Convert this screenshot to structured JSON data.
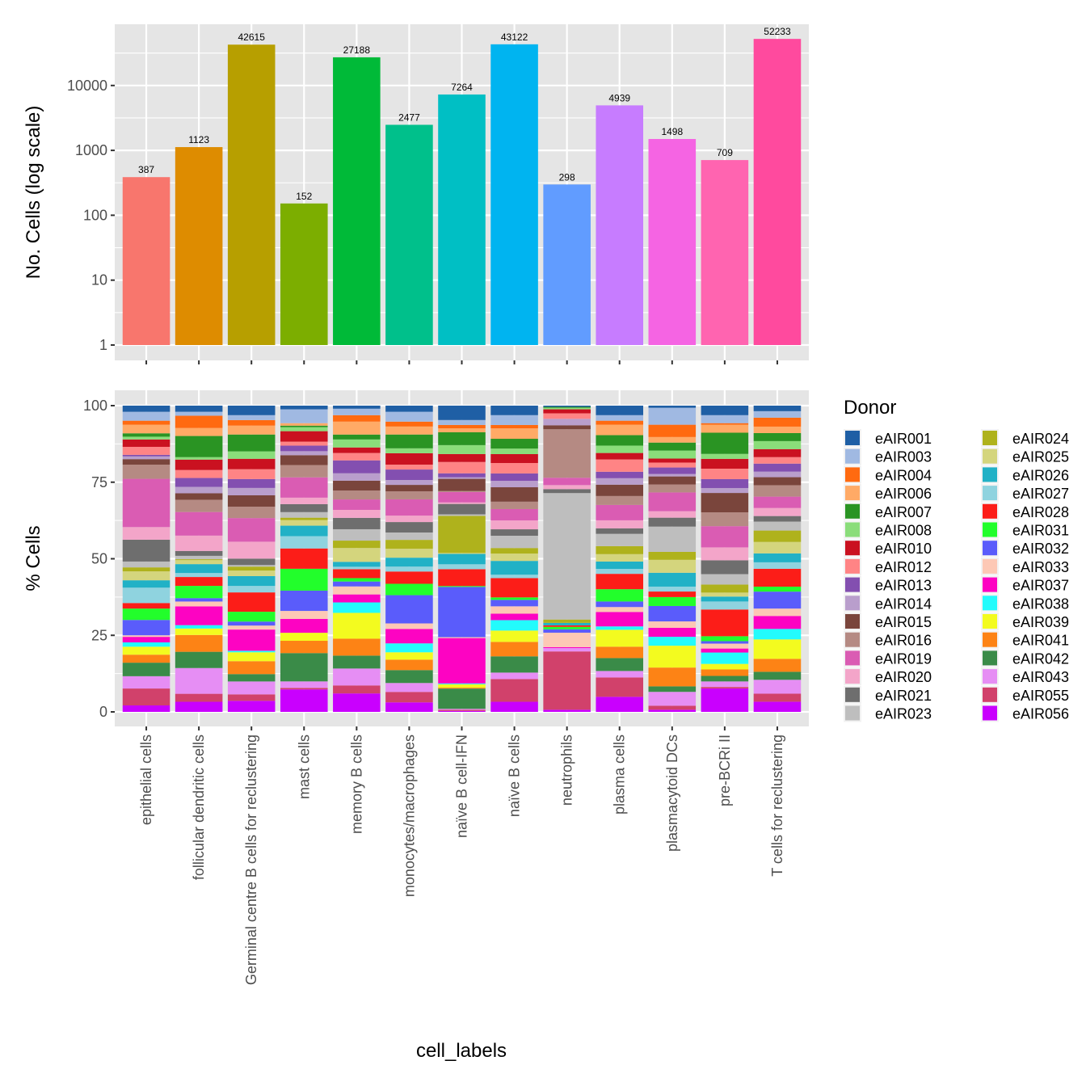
{
  "chart_data": [
    {
      "type": "bar",
      "panel": "top",
      "title": "",
      "xlabel": "",
      "ylabel": "No. Cells (log scale)",
      "yscale": "log10",
      "ylim": [
        1,
        100000
      ],
      "yticks": [
        1,
        10,
        100,
        1000,
        10000
      ],
      "ytick_labels": [
        "1",
        "10",
        "100",
        "1000",
        "10000"
      ],
      "grid": true,
      "categories": [
        "epithelial cells",
        "follicular dendritic cells",
        "Germinal centre B cells for reclustering",
        "mast cells",
        "memory B cells",
        "monocytes/macrophages",
        "naïve B cell-IFN",
        "naïve B cells",
        "neutrophils",
        "plasma cells",
        "plasmacytoid DCs",
        "pre-BCRi II",
        "T cells for reclustering"
      ],
      "values": [
        387,
        1123,
        42615,
        152,
        27188,
        2477,
        7264,
        43122,
        298,
        4939,
        1498,
        709,
        52233
      ],
      "data_labels": [
        "387",
        "1123",
        "42615",
        "152",
        "27188",
        "2477",
        "7264",
        "43122",
        "298",
        "4939",
        "1498",
        "709",
        "52233"
      ],
      "colors": [
        "#F8766D",
        "#DE8C00",
        "#B79F00",
        "#7CAE00",
        "#00BA38",
        "#00C08B",
        "#00BFC4",
        "#00B4F0",
        "#619CFF",
        "#C77CFF",
        "#F564E3",
        "#FF64B0",
        "#FF4A9E"
      ]
    },
    {
      "type": "bar",
      "stacked": true,
      "panel": "bottom",
      "title": "",
      "xlabel": "cell_labels",
      "ylabel": "% Cells",
      "ylim": [
        0,
        100
      ],
      "yticks": [
        0,
        25,
        50,
        75,
        100
      ],
      "ytick_labels": [
        "0",
        "25",
        "50",
        "75",
        "100"
      ],
      "grid": true,
      "legend_title": "Donor",
      "legend_position": "right",
      "categories": [
        "epithelial cells",
        "follicular dendritic cells",
        "Germinal centre B cells for reclustering",
        "mast cells",
        "memory B cells",
        "monocytes/macrophages",
        "naïve B cell-IFN",
        "naïve B cells",
        "neutrophils",
        "plasma cells",
        "plasmacytoid DCs",
        "pre-BCRi II",
        "T cells for reclustering"
      ],
      "series": [
        {
          "name": "eAIR001",
          "color": "#1F5FA5",
          "values": [
            2.0,
            2.0,
            3.1,
            1.2,
            1.0,
            2.0,
            4.7,
            3.1,
            0.4,
            3.1,
            0.7,
            3.1,
            1.8
          ]
        },
        {
          "name": "eAIR003",
          "color": "#A0B9E2",
          "values": [
            2.9,
            1.3,
            1.6,
            4.5,
            2.1,
            3.2,
            1.6,
            3.2,
            0.0,
            1.8,
            5.5,
            2.6,
            2.1
          ]
        },
        {
          "name": "eAIR004",
          "color": "#FF6A10",
          "values": [
            1.3,
            4.0,
            1.8,
            0.0,
            2.1,
            1.6,
            1.1,
            1.1,
            0.0,
            1.3,
            4.0,
            0.5,
            2.9
          ]
        },
        {
          "name": "eAIR006",
          "color": "#FFAA66",
          "values": [
            2.8,
            2.6,
            2.9,
            0.8,
            4.2,
            2.6,
            1.3,
            3.4,
            0.0,
            3.4,
            1.8,
            2.6,
            2.1
          ]
        },
        {
          "name": "eAIR007",
          "color": "#2A9423",
          "values": [
            1.1,
            6.9,
            5.5,
            0.5,
            1.6,
            4.5,
            4.2,
            3.2,
            0.3,
            3.4,
            2.6,
            6.9,
            2.6
          ]
        },
        {
          "name": "eAIR008",
          "color": "#8ADD7A",
          "values": [
            0.9,
            0.8,
            2.4,
            1.3,
            2.6,
            1.6,
            2.9,
            1.8,
            0.5,
            2.4,
            2.6,
            1.6,
            2.6
          ]
        },
        {
          "name": "eAIR010",
          "color": "#CA1120",
          "values": [
            2.4,
            3.4,
            3.4,
            3.4,
            1.8,
            3.7,
            2.6,
            2.9,
            1.3,
            2.1,
            1.3,
            3.2,
            2.6
          ]
        },
        {
          "name": "eAIR012",
          "color": "#FF8485",
          "values": [
            2.6,
            2.6,
            3.2,
            1.3,
            2.4,
            1.6,
            3.7,
            3.4,
            1.8,
            4.0,
            1.6,
            3.4,
            2.1
          ]
        },
        {
          "name": "eAIR013",
          "color": "#834FB0",
          "values": [
            0.5,
            2.9,
            2.9,
            1.8,
            4.2,
            3.4,
            1.3,
            2.4,
            0.0,
            2.1,
            2.1,
            2.9,
            2.6
          ]
        },
        {
          "name": "eAIR014",
          "color": "#B99ECC",
          "values": [
            0.9,
            2.1,
            2.4,
            1.3,
            2.4,
            1.6,
            0.5,
            2.1,
            2.1,
            2.1,
            0.8,
            1.6,
            1.8
          ]
        },
        {
          "name": "eAIR015",
          "color": "#7A453C",
          "values": [
            1.8,
            2.1,
            3.7,
            3.2,
            3.2,
            2.1,
            4.0,
            4.7,
            1.3,
            3.7,
            2.6,
            6.3,
            2.6
          ]
        },
        {
          "name": "eAIR016",
          "color": "#B58A83",
          "values": [
            4.6,
            4.0,
            3.7,
            4.0,
            2.9,
            2.6,
            0.3,
            2.4,
            15.8,
            2.9,
            2.6,
            4.5,
            3.7
          ]
        },
        {
          "name": "eAIR019",
          "color": "#DA5CB3",
          "values": [
            15.7,
            7.7,
            7.7,
            6.6,
            3.4,
            5.3,
            3.4,
            3.7,
            2.4,
            5.0,
            6.1,
            6.9,
            3.7
          ]
        },
        {
          "name": "eAIR020",
          "color": "#F3A5C9",
          "values": [
            4.1,
            5.0,
            5.5,
            2.1,
            2.6,
            2.1,
            0.5,
            2.9,
            1.3,
            2.6,
            2.1,
            4.2,
            2.6
          ]
        },
        {
          "name": "eAIR021",
          "color": "#6E6E6E",
          "values": [
            7.1,
            1.6,
            2.1,
            2.6,
            3.7,
            3.4,
            3.4,
            2.1,
            1.3,
            1.8,
            2.9,
            4.5,
            1.8
          ]
        },
        {
          "name": "eAIR023",
          "color": "#BEBEBE",
          "values": [
            1.9,
            1.1,
            0.5,
            1.8,
            3.7,
            2.4,
            0.5,
            4.0,
            41.2,
            4.0,
            8.2,
            3.4,
            2.9
          ]
        },
        {
          "name": "eAIR024",
          "color": "#AFB21C",
          "values": [
            1.3,
            0.3,
            1.3,
            0.8,
            2.4,
            2.9,
            12.1,
            1.8,
            1.1,
            2.6,
            2.6,
            2.6,
            3.7
          ]
        },
        {
          "name": "eAIR025",
          "color": "#D4D57D",
          "values": [
            2.9,
            1.3,
            1.8,
            1.8,
            4.5,
            2.9,
            0.3,
            2.4,
            0.0,
            2.4,
            4.2,
            1.3,
            3.7
          ]
        },
        {
          "name": "eAIR026",
          "color": "#21B1C6",
          "values": [
            2.4,
            2.9,
            3.2,
            3.4,
            1.6,
            2.9,
            3.4,
            4.5,
            0.8,
            2.4,
            4.5,
            1.6,
            2.9
          ]
        },
        {
          "name": "eAIR027",
          "color": "#8FD3DF",
          "values": [
            5.0,
            1.3,
            2.1,
            4.0,
            0.8,
            1.6,
            1.6,
            1.1,
            0.0,
            1.6,
            1.6,
            2.6,
            2.1
          ]
        },
        {
          "name": "eAIR028",
          "color": "#FC1D18",
          "values": [
            1.8,
            2.9,
            6.3,
            6.6,
            2.9,
            4.0,
            5.5,
            6.3,
            0.5,
            5.0,
            1.8,
            8.7,
            5.8
          ]
        },
        {
          "name": "eAIR031",
          "color": "#22FE2B",
          "values": [
            3.7,
            4.0,
            3.2,
            7.1,
            1.1,
            3.7,
            0.3,
            0.8,
            0.8,
            4.0,
            2.9,
            1.6,
            1.6
          ]
        },
        {
          "name": "eAIR032",
          "color": "#5A5CFB",
          "values": [
            5.0,
            1.1,
            1.3,
            6.6,
            1.6,
            9.2,
            16.4,
            2.1,
            1.1,
            1.8,
            5.0,
            0.8,
            5.5
          ]
        },
        {
          "name": "eAIR033",
          "color": "#FDC8B5",
          "values": [
            0.5,
            1.6,
            1.3,
            2.6,
            2.6,
            1.8,
            0.3,
            2.4,
            4.7,
            1.6,
            2.1,
            1.6,
            2.4
          ]
        },
        {
          "name": "eAIR037",
          "color": "#FD03C2",
          "values": [
            1.8,
            6.1,
            6.9,
            4.5,
            2.6,
            4.7,
            14.8,
            2.1,
            0.3,
            4.7,
            2.9,
            1.3,
            4.2
          ]
        },
        {
          "name": "eAIR038",
          "color": "#23FBFC",
          "values": [
            1.4,
            1.1,
            0.5,
            0.0,
            3.4,
            2.9,
            0.3,
            3.4,
            0.0,
            1.1,
            2.9,
            3.7,
            3.4
          ]
        },
        {
          "name": "eAIR039",
          "color": "#F3FB1F",
          "values": [
            2.6,
            2.1,
            2.9,
            2.6,
            8.4,
            2.4,
            1.1,
            3.7,
            0.0,
            5.5,
            7.1,
            1.8,
            6.3
          ]
        },
        {
          "name": "eAIR041",
          "color": "#FD8315",
          "values": [
            2.6,
            5.5,
            4.2,
            4.0,
            5.5,
            3.4,
            0.3,
            4.7,
            0.0,
            3.7,
            6.1,
            2.1,
            4.2
          ]
        },
        {
          "name": "eAIR042",
          "color": "#3A8B48",
          "values": [
            4.4,
            5.3,
            2.4,
            9.2,
            4.2,
            4.2,
            6.6,
            5.3,
            0.0,
            4.2,
            1.8,
            1.8,
            2.6
          ]
        },
        {
          "name": "eAIR043",
          "color": "#E68EF4",
          "values": [
            4.0,
            8.4,
            4.2,
            2.1,
            5.5,
            2.9,
            0.3,
            2.1,
            1.1,
            2.1,
            4.5,
            1.8,
            4.5
          ]
        },
        {
          "name": "eAIR055",
          "color": "#D1416B",
          "values": [
            5.5,
            2.6,
            2.1,
            0.5,
            2.6,
            3.4,
            0.4,
            7.4,
            19.0,
            6.3,
            1.3,
            0.5,
            2.6
          ]
        },
        {
          "name": "eAIR056",
          "color": "#C900FE",
          "values": [
            2.1,
            3.3,
            3.6,
            7.3,
            6.0,
            3.1,
            0.3,
            3.3,
            0.7,
            4.9,
            0.7,
            7.6,
            3.3
          ]
        }
      ]
    }
  ]
}
